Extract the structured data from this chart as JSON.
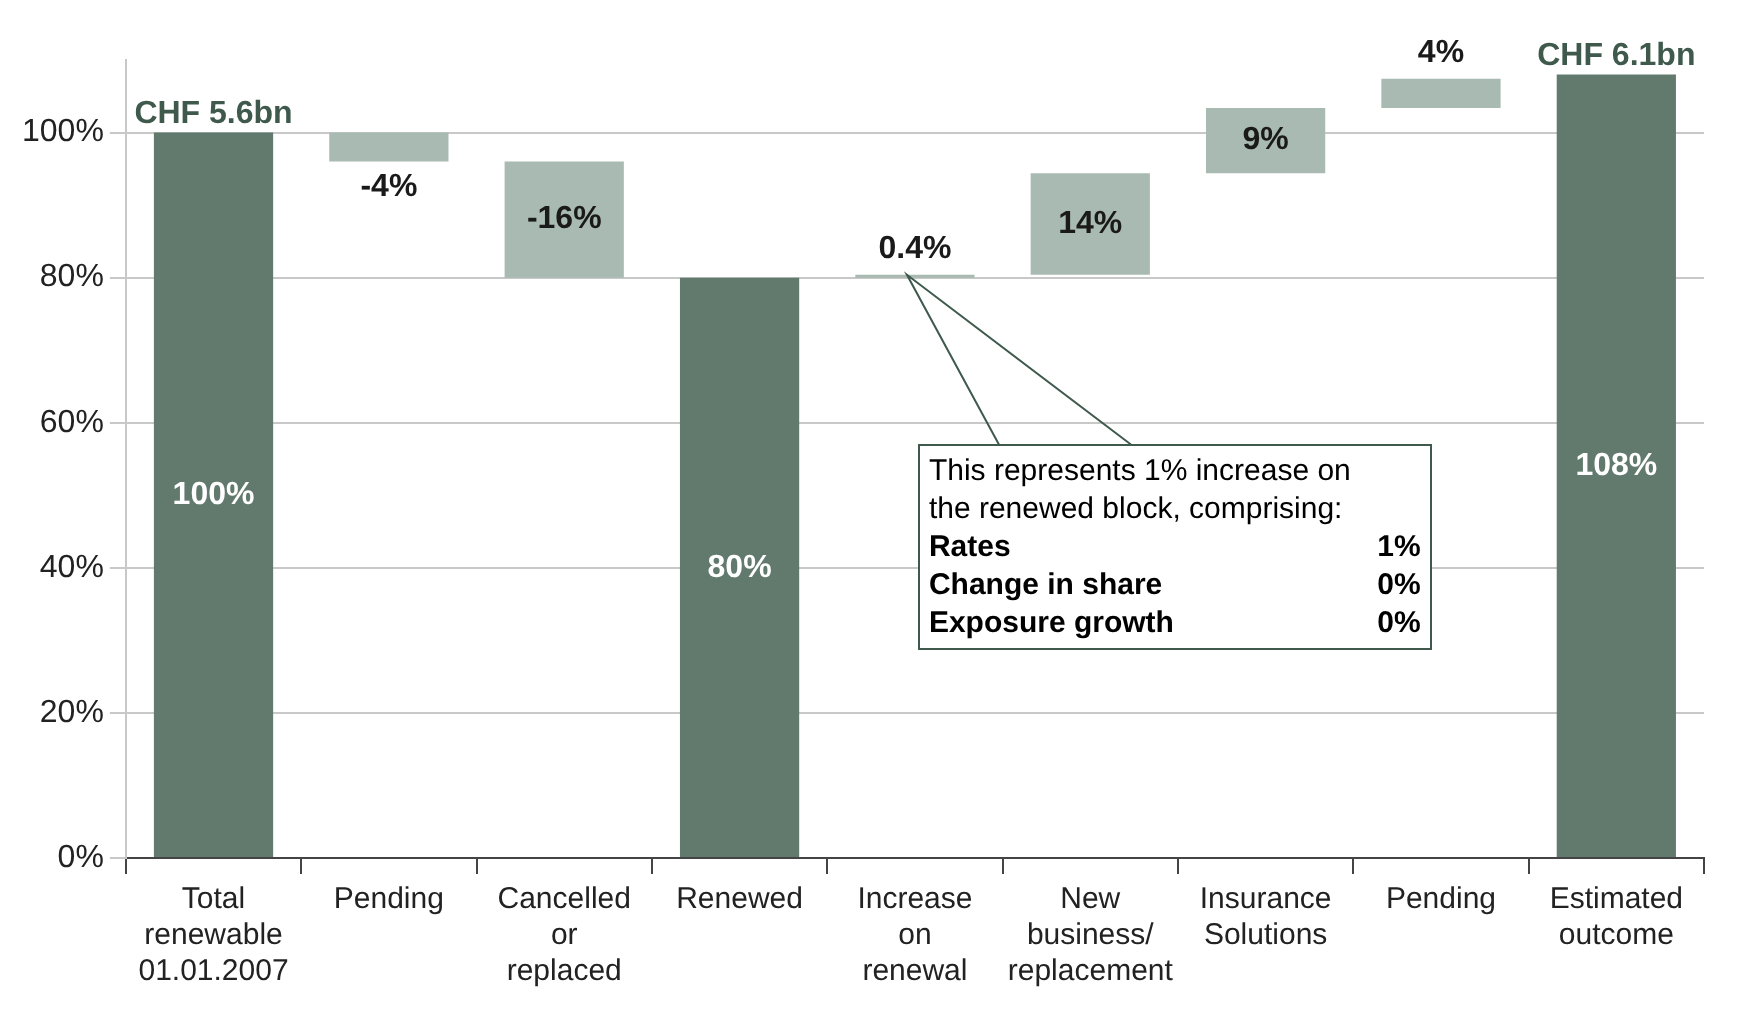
{
  "chart_data": {
    "type": "bar",
    "categories": [
      "Total renewable 01.01.2007",
      "Pending",
      "Cancelled or replaced",
      "Renewed",
      "Increase on renewal",
      "New business/ replacement",
      "Insurance Solutions",
      "Pending",
      "Estimated outcome"
    ],
    "values": [
      100,
      -4,
      -16,
      80,
      0.4,
      14,
      9,
      4,
      108
    ],
    "base": [
      0,
      100,
      96,
      0,
      80,
      80.4,
      94.4,
      103.4,
      0
    ],
    "colors": [
      "#627a6e",
      "#a9bab2",
      "#a9bab2",
      "#627a6e",
      "#a9bab2",
      "#a9bab2",
      "#a9bab2",
      "#a9bab2",
      "#627a6e"
    ],
    "value_labels": [
      "100%",
      "-4%",
      "-16%",
      "80%",
      "0.4%",
      "14%",
      "9%",
      "4%",
      "108%"
    ],
    "ylim": [
      0,
      110
    ],
    "yticks": [
      {
        "value": 0,
        "label": "0%"
      },
      {
        "value": 20,
        "label": "20%"
      },
      {
        "value": 40,
        "label": "40%"
      },
      {
        "value": 60,
        "label": "60%"
      },
      {
        "value": 80,
        "label": "80%"
      },
      {
        "value": 100,
        "label": "100%"
      }
    ],
    "grid": "y",
    "annotations": [
      {
        "text": "CHF 5.6bn",
        "x": "Total renewable 01.01.2007",
        "y": 100
      },
      {
        "text": "CHF 6.1bn",
        "x": "Estimated outcome",
        "y": 108
      },
      "This represents 1% increase on the renewed block, comprising:",
      "Rates",
      "1%",
      "Change in share",
      "0%",
      "Exposure growth",
      "0%"
    ]
  }
}
